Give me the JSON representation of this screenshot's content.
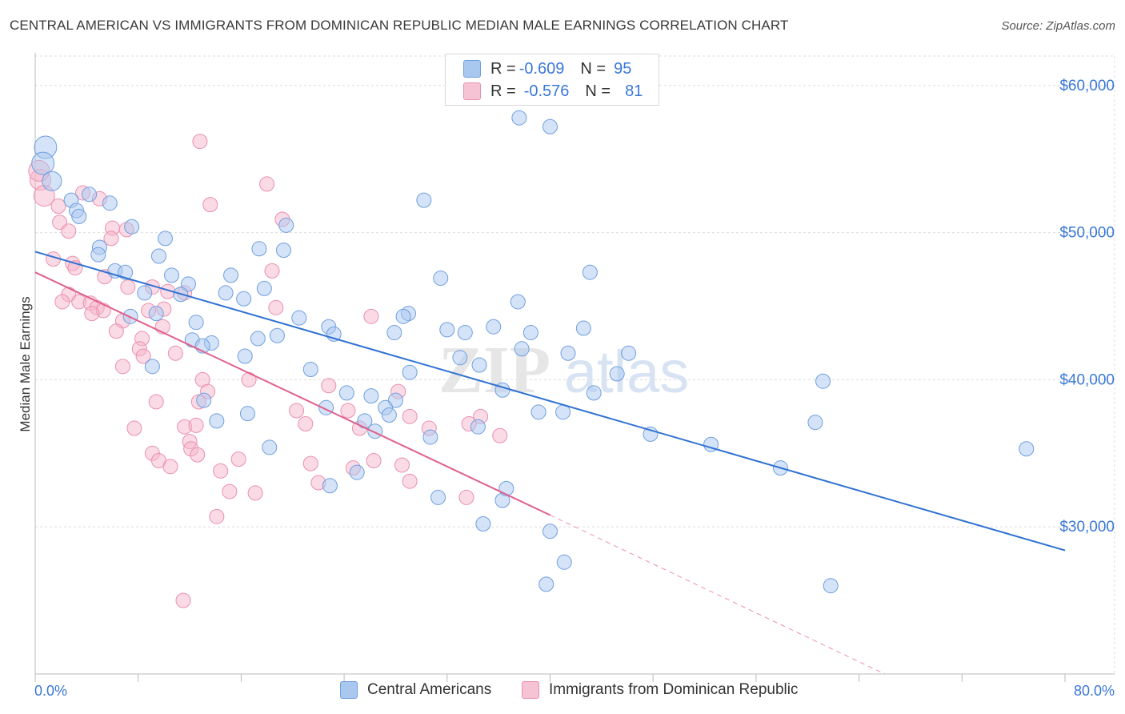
{
  "title": "CENTRAL AMERICAN VS IMMIGRANTS FROM DOMINICAN REPUBLIC MEDIAN MALE EARNINGS CORRELATION CHART",
  "source": "Source: ZipAtlas.com",
  "watermark": {
    "zip": "ZIP",
    "atlas": "atlas"
  },
  "legend": {
    "r_label": "R =",
    "n_label": "N =",
    "rows": [
      {
        "r": "-0.609",
        "n": "95"
      },
      {
        "r": "-0.576",
        "n": "81"
      }
    ]
  },
  "series_labels": [
    "Central Americans",
    "Immigrants from Dominican Republic"
  ],
  "colors": {
    "blue_fill": "#a9c8f0",
    "blue_stroke": "#6f9fe0",
    "blue_line": "#2f72d2",
    "pink_fill": "#f6b6cb",
    "pink_stroke": "#ea8fae",
    "pink_line": "#e0608e",
    "axis_text": "#3a78d8",
    "grid": "#dcdcdc"
  },
  "chart_data": {
    "type": "scatter",
    "title": "CENTRAL AMERICAN VS IMMIGRANTS FROM DOMINICAN REPUBLIC MEDIAN MALE EARNINGS CORRELATION CHART",
    "xlabel": "",
    "ylabel": "Median Male Earnings",
    "xlim": [
      0,
      80
    ],
    "ylim": [
      20000,
      62000
    ],
    "x_tick_labels": [
      "0.0%",
      "80.0%"
    ],
    "y_ticks": [
      30000,
      40000,
      50000,
      60000
    ],
    "y_tick_labels": [
      "$30,000",
      "$40,000",
      "$50,000",
      "$60,000"
    ],
    "grid": true,
    "legend_position": "top-center",
    "series": [
      {
        "name": "Central Americans",
        "r": -0.609,
        "n": 95,
        "trend": {
          "x": [
            0,
            80
          ],
          "y": [
            48700,
            28400
          ]
        },
        "points": [
          [
            0.8,
            55800
          ],
          [
            0.6,
            54700
          ],
          [
            1.3,
            53500
          ],
          [
            2.8,
            52200
          ],
          [
            4.2,
            52600
          ],
          [
            5.8,
            52000
          ],
          [
            3.2,
            51500
          ],
          [
            3.4,
            51100
          ],
          [
            7.5,
            50400
          ],
          [
            10.1,
            49600
          ],
          [
            5.0,
            49000
          ],
          [
            19.5,
            50500
          ],
          [
            19.3,
            48800
          ],
          [
            30.2,
            52200
          ],
          [
            4.9,
            48500
          ],
          [
            9.6,
            48400
          ],
          [
            17.4,
            48900
          ],
          [
            6.2,
            47400
          ],
          [
            7.0,
            47300
          ],
          [
            8.5,
            45900
          ],
          [
            10.6,
            47100
          ],
          [
            11.9,
            46500
          ],
          [
            15.2,
            47100
          ],
          [
            14.8,
            45900
          ],
          [
            17.8,
            46200
          ],
          [
            31.5,
            46900
          ],
          [
            43.1,
            47300
          ],
          [
            7.4,
            44300
          ],
          [
            9.4,
            44500
          ],
          [
            11.3,
            45800
          ],
          [
            12.5,
            43900
          ],
          [
            20.5,
            44200
          ],
          [
            22.8,
            43600
          ],
          [
            23.2,
            43100
          ],
          [
            29.0,
            44500
          ],
          [
            28.6,
            44300
          ],
          [
            27.9,
            43200
          ],
          [
            32.0,
            43400
          ],
          [
            33.4,
            43200
          ],
          [
            35.6,
            43600
          ],
          [
            37.5,
            45300
          ],
          [
            38.5,
            43200
          ],
          [
            12.2,
            42700
          ],
          [
            13.7,
            42500
          ],
          [
            13.0,
            42300
          ],
          [
            17.3,
            42800
          ],
          [
            18.8,
            43000
          ],
          [
            37.8,
            42100
          ],
          [
            41.4,
            41800
          ],
          [
            33.0,
            41500
          ],
          [
            16.3,
            41600
          ],
          [
            9.1,
            40900
          ],
          [
            21.4,
            40700
          ],
          [
            29.1,
            40500
          ],
          [
            34.5,
            41000
          ],
          [
            46.1,
            41800
          ],
          [
            45.2,
            40400
          ],
          [
            13.1,
            38600
          ],
          [
            22.6,
            38100
          ],
          [
            24.2,
            39100
          ],
          [
            26.1,
            38900
          ],
          [
            28.0,
            38600
          ],
          [
            27.2,
            38100
          ],
          [
            36.3,
            39300
          ],
          [
            43.4,
            39100
          ],
          [
            14.1,
            37200
          ],
          [
            16.5,
            37700
          ],
          [
            25.6,
            37200
          ],
          [
            26.4,
            36500
          ],
          [
            27.5,
            37600
          ],
          [
            30.7,
            36100
          ],
          [
            34.4,
            36800
          ],
          [
            39.1,
            37800
          ],
          [
            41.0,
            37800
          ],
          [
            47.8,
            36300
          ],
          [
            52.5,
            35600
          ],
          [
            61.2,
            39900
          ],
          [
            60.6,
            37100
          ],
          [
            77.0,
            35300
          ],
          [
            18.2,
            35400
          ],
          [
            25.0,
            33700
          ],
          [
            22.9,
            32800
          ],
          [
            31.3,
            32000
          ],
          [
            34.8,
            30200
          ],
          [
            36.3,
            31800
          ],
          [
            36.6,
            32600
          ],
          [
            40.0,
            29700
          ],
          [
            41.1,
            27600
          ],
          [
            39.7,
            26100
          ],
          [
            57.9,
            34000
          ],
          [
            61.8,
            26000
          ],
          [
            37.6,
            57800
          ],
          [
            40.0,
            57200
          ],
          [
            16.2,
            45500
          ],
          [
            42.6,
            43500
          ]
        ]
      },
      {
        "name": "Immigrants from Dominican Republic",
        "r": -0.576,
        "n": 81,
        "trend": {
          "x": [
            0,
            40
          ],
          "y": [
            47300,
            30800
          ]
        },
        "trend_dashed": {
          "x": [
            40,
            66
          ],
          "y": [
            30800,
            20000
          ]
        },
        "points": [
          [
            0.4,
            53600
          ],
          [
            0.7,
            52500
          ],
          [
            1.8,
            51800
          ],
          [
            3.7,
            52700
          ],
          [
            5.0,
            52300
          ],
          [
            12.8,
            56200
          ],
          [
            18.0,
            53300
          ],
          [
            13.6,
            51900
          ],
          [
            19.2,
            50900
          ],
          [
            1.9,
            50700
          ],
          [
            2.6,
            50100
          ],
          [
            6.0,
            50300
          ],
          [
            5.9,
            49600
          ],
          [
            1.4,
            48200
          ],
          [
            2.9,
            47900
          ],
          [
            3.1,
            47600
          ],
          [
            18.4,
            47400
          ],
          [
            5.4,
            47000
          ],
          [
            7.2,
            46300
          ],
          [
            9.1,
            46300
          ],
          [
            10.3,
            46000
          ],
          [
            11.6,
            45900
          ],
          [
            2.6,
            45800
          ],
          [
            2.1,
            45300
          ],
          [
            3.4,
            45300
          ],
          [
            4.3,
            45200
          ],
          [
            4.8,
            44900
          ],
          [
            5.3,
            44700
          ],
          [
            8.8,
            44700
          ],
          [
            10.0,
            44800
          ],
          [
            18.7,
            44900
          ],
          [
            26.1,
            44300
          ],
          [
            4.4,
            44500
          ],
          [
            6.8,
            44000
          ],
          [
            6.3,
            43300
          ],
          [
            8.3,
            42800
          ],
          [
            8.1,
            42100
          ],
          [
            8.4,
            41600
          ],
          [
            10.9,
            41800
          ],
          [
            6.8,
            40900
          ],
          [
            13.0,
            40000
          ],
          [
            16.6,
            40000
          ],
          [
            22.8,
            39600
          ],
          [
            28.2,
            39200
          ],
          [
            13.4,
            39200
          ],
          [
            12.7,
            38500
          ],
          [
            9.4,
            38500
          ],
          [
            20.3,
            37900
          ],
          [
            24.3,
            37900
          ],
          [
            29.1,
            37500
          ],
          [
            34.6,
            37500
          ],
          [
            7.7,
            36700
          ],
          [
            11.6,
            36800
          ],
          [
            12.5,
            36900
          ],
          [
            25.2,
            36700
          ],
          [
            30.6,
            36700
          ],
          [
            33.7,
            37000
          ],
          [
            12.0,
            35800
          ],
          [
            9.1,
            35000
          ],
          [
            12.1,
            35300
          ],
          [
            12.6,
            34900
          ],
          [
            15.8,
            34600
          ],
          [
            9.6,
            34500
          ],
          [
            10.5,
            34100
          ],
          [
            21.4,
            34300
          ],
          [
            24.7,
            34000
          ],
          [
            26.3,
            34500
          ],
          [
            28.5,
            34200
          ],
          [
            14.4,
            33800
          ],
          [
            22.0,
            33000
          ],
          [
            29.1,
            33100
          ],
          [
            15.1,
            32400
          ],
          [
            17.1,
            32300
          ],
          [
            33.5,
            32000
          ],
          [
            36.1,
            36200
          ],
          [
            21.0,
            37000
          ],
          [
            14.1,
            30700
          ],
          [
            11.5,
            25000
          ],
          [
            0.3,
            54200
          ],
          [
            7.1,
            50200
          ],
          [
            9.9,
            43600
          ]
        ]
      }
    ]
  }
}
